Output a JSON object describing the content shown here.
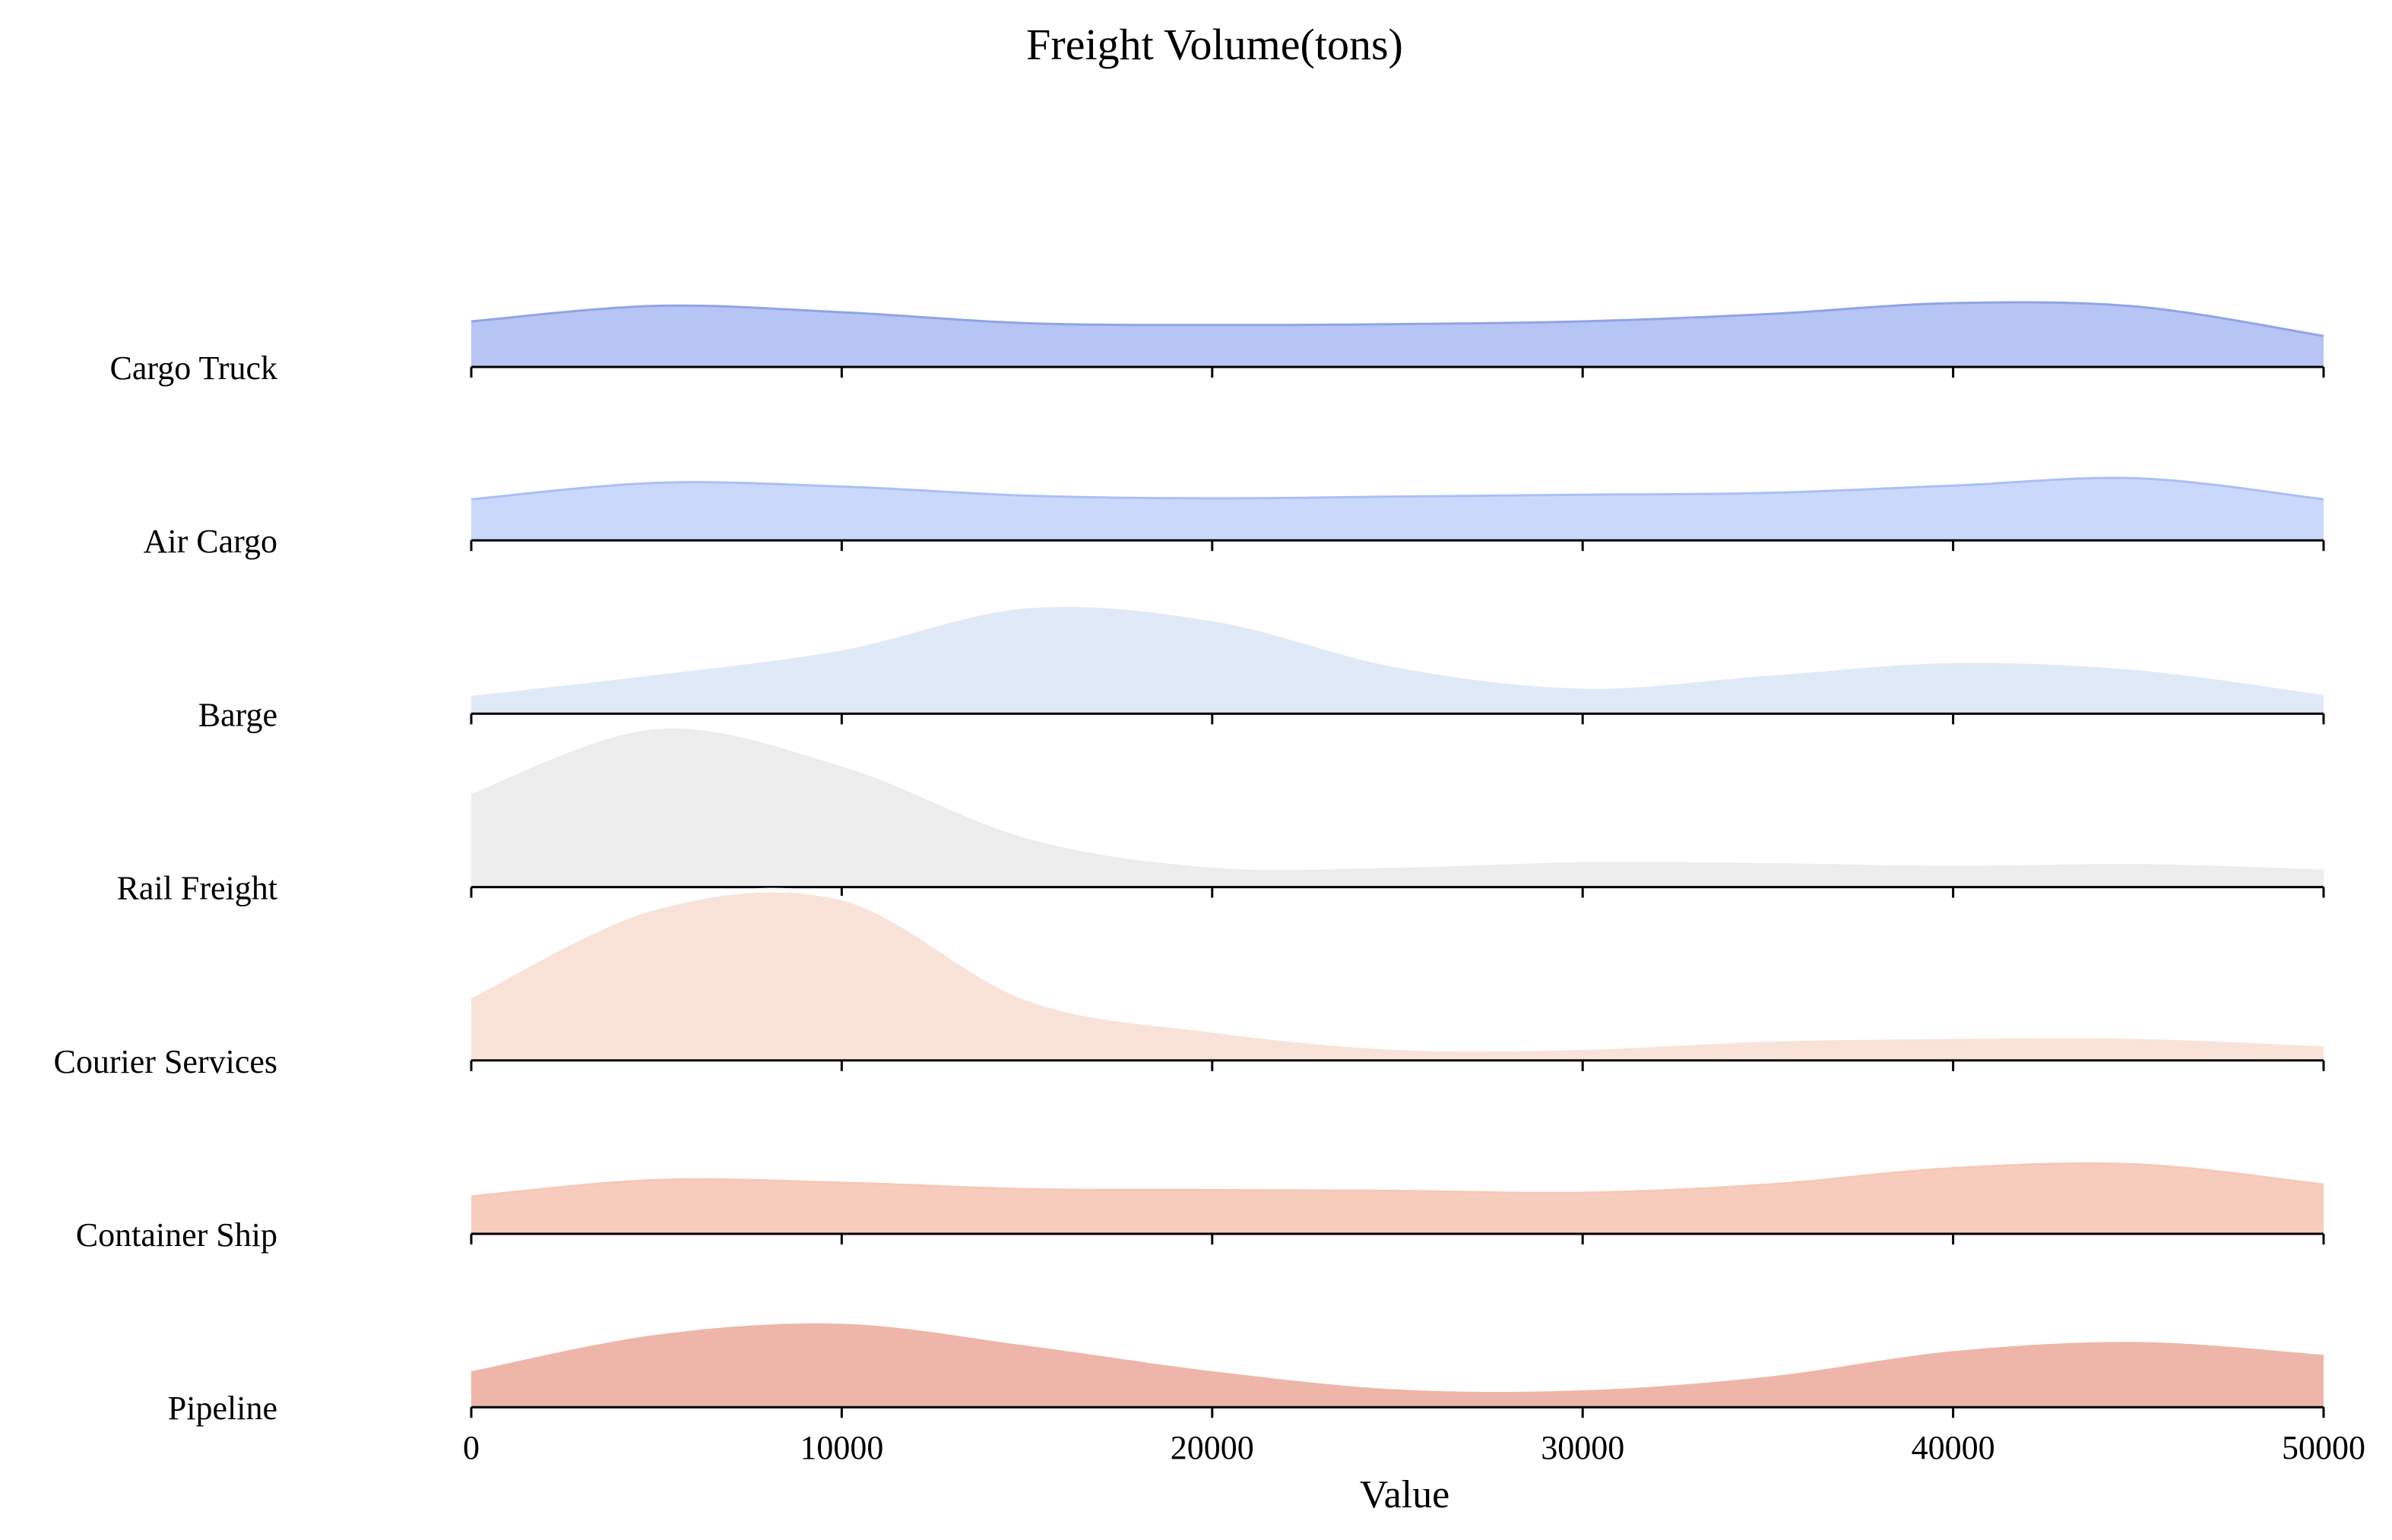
{
  "chart_data": {
    "type": "ridgeline",
    "title": "Freight Volume(tons)",
    "xlabel": "Value",
    "ylabel": "",
    "xlim": [
      0,
      50000
    ],
    "xticks": [
      0,
      10000,
      20000,
      30000,
      40000,
      50000
    ],
    "grid": false,
    "legend": "none",
    "x": [
      0,
      5000,
      10000,
      15000,
      20000,
      25000,
      30000,
      35000,
      40000,
      45000,
      50000
    ],
    "series": [
      {
        "name": "Cargo Truck",
        "color": "#b0c0f2",
        "line": "#8fa4e8",
        "outline": false,
        "values": [
          0.5,
          0.67,
          0.6,
          0.48,
          0.46,
          0.47,
          0.5,
          0.58,
          0.7,
          0.66,
          0.34
        ]
      },
      {
        "name": "Air Cargo",
        "color": "#c6d6fb",
        "line": "#a9bff5",
        "outline": false,
        "values": [
          0.45,
          0.63,
          0.59,
          0.49,
          0.46,
          0.48,
          0.5,
          0.52,
          0.6,
          0.68,
          0.45
        ]
      },
      {
        "name": "Barge",
        "color": "#dde7f7",
        "line": "#ffffff",
        "outline": true,
        "values": [
          0.22,
          0.45,
          0.72,
          1.18,
          1.04,
          0.53,
          0.3,
          0.44,
          0.58,
          0.5,
          0.23
        ]
      },
      {
        "name": "Rail Freight",
        "color": "#ececec",
        "line": "#ececec",
        "outline": false,
        "values": [
          1.01,
          1.72,
          1.31,
          0.52,
          0.2,
          0.2,
          0.26,
          0.25,
          0.22,
          0.24,
          0.18
        ]
      },
      {
        "name": "Courier Services",
        "color": "#f8e0d4",
        "line": "#ffffff",
        "outline": true,
        "values": [
          0.71,
          1.68,
          1.78,
          0.68,
          0.33,
          0.14,
          0.14,
          0.23,
          0.26,
          0.26,
          0.18
        ]
      },
      {
        "name": "Container Ship",
        "color": "#f6c8b7",
        "line": "#f6c8b7",
        "outline": false,
        "values": [
          0.41,
          0.59,
          0.56,
          0.49,
          0.48,
          0.47,
          0.45,
          0.54,
          0.72,
          0.76,
          0.54
        ]
      },
      {
        "name": "Pipeline",
        "color": "#ecb0a2",
        "line": "#ffffff",
        "outline": true,
        "values": [
          0.42,
          0.82,
          0.94,
          0.7,
          0.42,
          0.22,
          0.21,
          0.36,
          0.64,
          0.74,
          0.6
        ]
      }
    ]
  }
}
